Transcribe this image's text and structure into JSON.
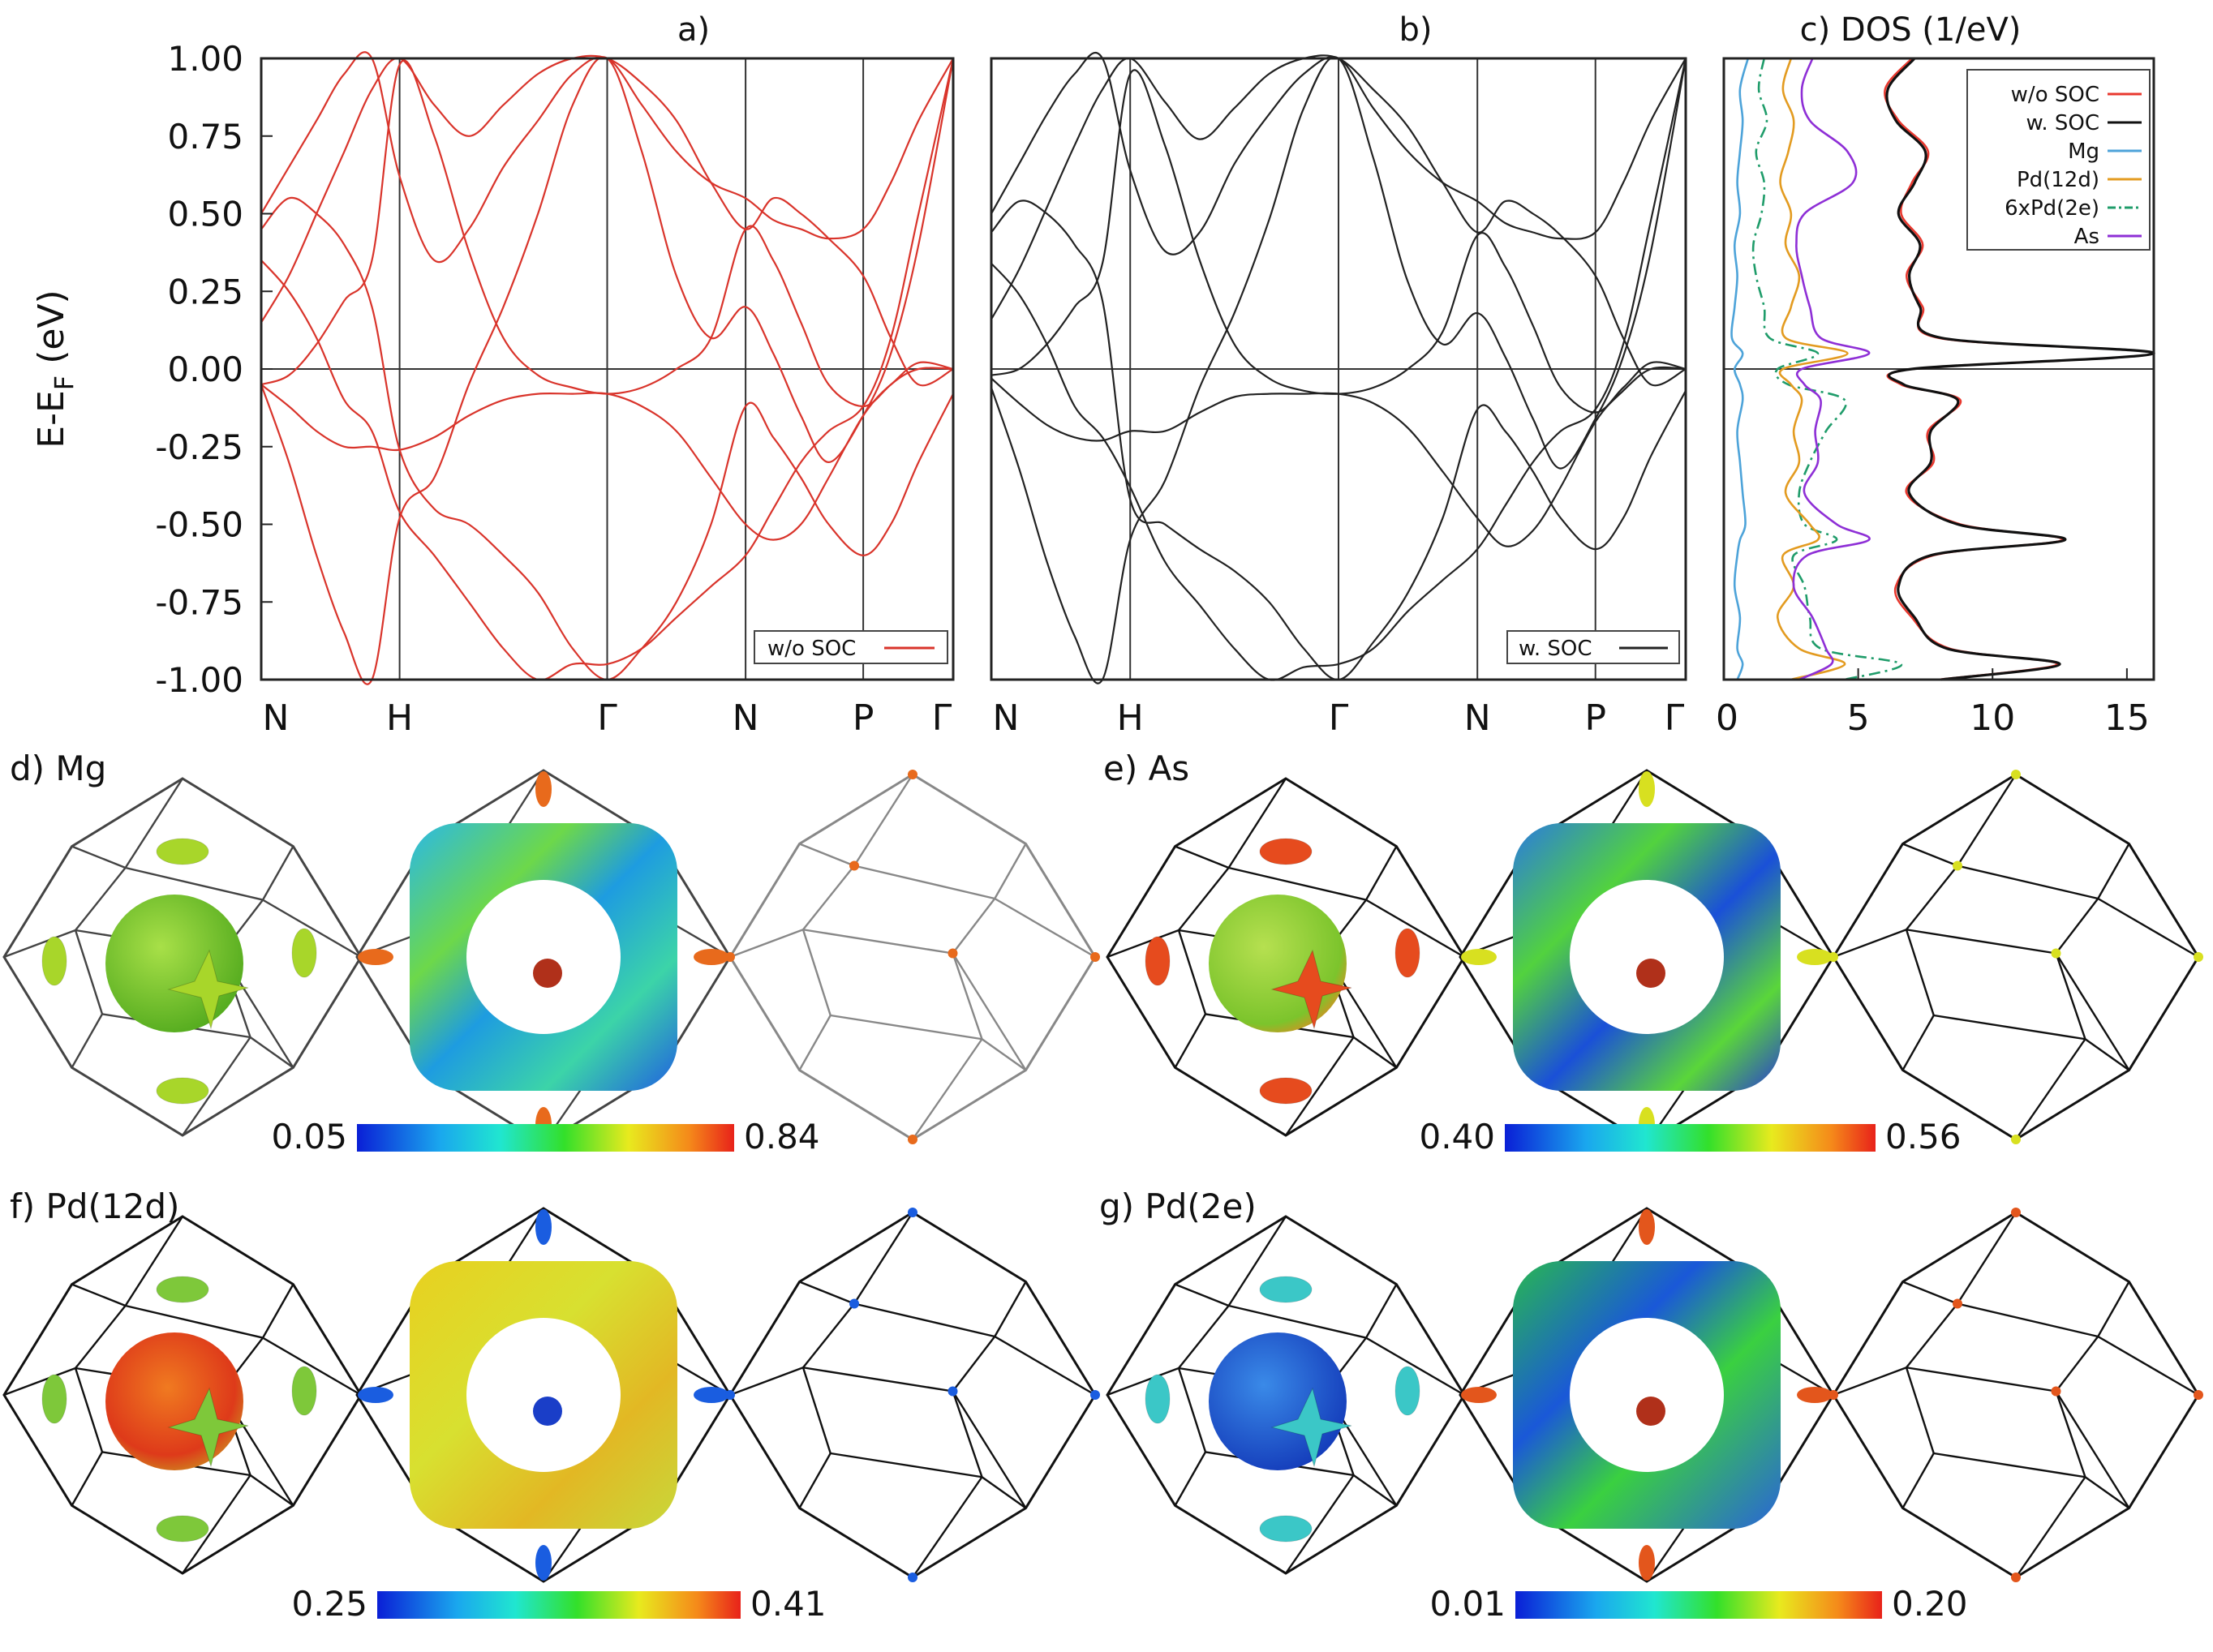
{
  "chart_data": [
    {
      "type": "line",
      "panel": "a)",
      "title": "a)",
      "ylabel": "E-E",
      "ylabel_sub": "F",
      "ylabel_unit": " (eV)",
      "ylim": [
        -1.0,
        1.0
      ],
      "yticks": [
        "1.00",
        "0.75",
        "0.50",
        "0.25",
        "0.00",
        "-0.25",
        "-0.50",
        "-0.75",
        "-1.00"
      ],
      "ytick_values": [
        1.0,
        0.75,
        0.5,
        0.25,
        0.0,
        -0.25,
        -0.5,
        -0.75,
        -1.0
      ],
      "kpoints": [
        "N",
        "H",
        "Γ",
        "N",
        "P",
        "Γ"
      ],
      "kpoint_pos": [
        0,
        0.2,
        0.5,
        0.7,
        0.87,
        1.0
      ],
      "color": "#d9342b",
      "legend": "w/o SOC",
      "legend_position": "bottom-right",
      "x": [
        0,
        0.04,
        0.08,
        0.12,
        0.16,
        0.2,
        0.25,
        0.3,
        0.35,
        0.4,
        0.45,
        0.5,
        0.55,
        0.6,
        0.65,
        0.7,
        0.74,
        0.78,
        0.82,
        0.87,
        0.91,
        0.95,
        1.0
      ],
      "series": [
        {
          "values": [
            -0.05,
            -0.02,
            0.08,
            0.22,
            0.35,
            0.98,
            0.75,
            0.38,
            0.1,
            -0.02,
            -0.06,
            -0.08,
            -0.06,
            0.0,
            0.1,
            0.45,
            0.35,
            0.15,
            -0.05,
            -0.12,
            -0.05,
            0.02,
            0.0
          ]
        },
        {
          "values": [
            -0.05,
            -0.12,
            -0.2,
            -0.25,
            -0.25,
            -0.26,
            -0.22,
            -0.15,
            -0.1,
            -0.08,
            -0.08,
            -0.08,
            -0.12,
            -0.2,
            -0.35,
            -0.5,
            -0.55,
            -0.5,
            -0.35,
            -0.15,
            -0.05,
            0.0,
            0.0
          ]
        },
        {
          "values": [
            0.45,
            0.55,
            0.5,
            0.4,
            0.2,
            -0.26,
            -0.45,
            -0.5,
            -0.6,
            -0.72,
            -0.9,
            -1.0,
            -0.9,
            -0.75,
            -0.5,
            -0.12,
            -0.22,
            -0.35,
            -0.5,
            -0.6,
            -0.5,
            -0.3,
            -0.08
          ]
        },
        {
          "values": [
            0.5,
            0.65,
            0.8,
            0.95,
            1.0,
            0.62,
            0.35,
            0.45,
            0.65,
            0.8,
            0.95,
            1.0,
            0.85,
            0.7,
            0.6,
            0.55,
            0.48,
            0.45,
            0.42,
            0.45,
            0.6,
            0.8,
            1.0
          ]
        },
        {
          "values": [
            -0.05,
            -0.3,
            -0.6,
            -0.85,
            -1.0,
            -0.48,
            -0.35,
            -0.05,
            0.2,
            0.5,
            0.85,
            1.0,
            0.7,
            0.3,
            0.1,
            0.2,
            0.05,
            -0.15,
            -0.3,
            -0.15,
            0.05,
            0.4,
            1.0
          ]
        },
        {
          "values": [
            0.35,
            0.25,
            0.1,
            -0.1,
            -0.2,
            -0.46,
            -0.6,
            -0.75,
            -0.9,
            -1.0,
            -0.95,
            -0.95,
            -0.9,
            -0.8,
            -0.7,
            -0.6,
            -0.45,
            -0.3,
            -0.2,
            -0.12,
            0.1,
            0.5,
            1.0
          ]
        },
        {
          "values": [
            0.15,
            0.3,
            0.5,
            0.7,
            0.9,
            1.0,
            0.85,
            0.75,
            0.85,
            0.95,
            1.0,
            1.0,
            0.92,
            0.8,
            0.6,
            0.45,
            0.55,
            0.5,
            0.42,
            0.3,
            0.1,
            -0.05,
            0.0
          ]
        }
      ]
    },
    {
      "type": "line",
      "panel": "b)",
      "title": "b)",
      "ylim": [
        -1.0,
        1.0
      ],
      "kpoints": [
        "N",
        "H",
        "Γ",
        "N",
        "P",
        "Γ"
      ],
      "kpoint_pos": [
        0,
        0.2,
        0.5,
        0.7,
        0.87,
        1.0
      ],
      "color": "#222222",
      "legend": "w. SOC",
      "legend_position": "bottom-right",
      "x": [
        0,
        0.04,
        0.08,
        0.12,
        0.16,
        0.2,
        0.25,
        0.3,
        0.35,
        0.4,
        0.45,
        0.5,
        0.55,
        0.6,
        0.65,
        0.7,
        0.74,
        0.78,
        0.82,
        0.87,
        0.91,
        0.95,
        1.0
      ],
      "series": [
        {
          "values": [
            -0.02,
            0.0,
            0.08,
            0.2,
            0.34,
            0.95,
            0.72,
            0.35,
            0.08,
            -0.03,
            -0.07,
            -0.08,
            -0.06,
            0.0,
            0.12,
            0.43,
            0.33,
            0.14,
            -0.06,
            -0.14,
            -0.06,
            0.02,
            0.0
          ]
        },
        {
          "values": [
            -0.03,
            -0.11,
            -0.18,
            -0.22,
            -0.23,
            -0.2,
            -0.2,
            -0.14,
            -0.09,
            -0.08,
            -0.08,
            -0.08,
            -0.11,
            -0.19,
            -0.33,
            -0.48,
            -0.57,
            -0.52,
            -0.38,
            -0.17,
            -0.07,
            0.0,
            0.0
          ]
        },
        {
          "values": [
            0.44,
            0.54,
            0.5,
            0.4,
            0.22,
            -0.42,
            -0.5,
            -0.58,
            -0.65,
            -0.75,
            -0.9,
            -1.0,
            -0.88,
            -0.72,
            -0.48,
            -0.13,
            -0.2,
            -0.33,
            -0.48,
            -0.58,
            -0.48,
            -0.28,
            -0.07
          ]
        },
        {
          "values": [
            0.5,
            0.66,
            0.82,
            0.95,
            1.0,
            0.64,
            0.38,
            0.44,
            0.66,
            0.82,
            0.95,
            1.0,
            0.84,
            0.7,
            0.6,
            0.54,
            0.47,
            0.44,
            0.42,
            0.44,
            0.6,
            0.8,
            1.0
          ]
        },
        {
          "values": [
            -0.06,
            -0.32,
            -0.62,
            -0.86,
            -1.0,
            -0.55,
            -0.36,
            -0.06,
            0.18,
            0.48,
            0.84,
            1.0,
            0.68,
            0.28,
            0.08,
            0.18,
            0.04,
            -0.16,
            -0.32,
            -0.16,
            0.04,
            0.38,
            1.0
          ]
        },
        {
          "values": [
            0.34,
            0.24,
            0.08,
            -0.12,
            -0.22,
            -0.38,
            -0.62,
            -0.76,
            -0.9,
            -1.0,
            -0.96,
            -0.95,
            -0.9,
            -0.78,
            -0.68,
            -0.58,
            -0.44,
            -0.3,
            -0.2,
            -0.13,
            0.08,
            0.48,
            1.0
          ]
        },
        {
          "values": [
            0.16,
            0.32,
            0.52,
            0.72,
            0.9,
            1.0,
            0.86,
            0.74,
            0.84,
            0.95,
            1.0,
            1.0,
            0.9,
            0.78,
            0.6,
            0.44,
            0.54,
            0.5,
            0.43,
            0.3,
            0.1,
            -0.05,
            0.0
          ]
        }
      ]
    },
    {
      "type": "line",
      "panel": "c)",
      "title": "c) DOS (1/eV)",
      "xlim": [
        0,
        16
      ],
      "xticks": [
        "0",
        "5",
        "10",
        "15"
      ],
      "xtick_values": [
        0,
        5,
        10,
        15
      ],
      "ylim": [
        -1.0,
        1.0
      ],
      "legend_position": "top-right",
      "y": [
        1.0,
        0.9,
        0.8,
        0.7,
        0.6,
        0.5,
        0.4,
        0.3,
        0.2,
        0.1,
        0.05,
        0.0,
        -0.05,
        -0.1,
        -0.2,
        -0.3,
        -0.4,
        -0.5,
        -0.55,
        -0.6,
        -0.7,
        -0.8,
        -0.9,
        -0.95,
        -1.0
      ],
      "series": [
        {
          "name": "w/o SOC",
          "color": "#e8392f",
          "dash": "solid",
          "values": [
            7.0,
            6.0,
            6.5,
            7.6,
            7.0,
            6.6,
            7.4,
            6.8,
            7.4,
            8.0,
            16.0,
            7.0,
            6.6,
            8.8,
            7.6,
            7.8,
            6.8,
            8.8,
            12.6,
            7.8,
            6.4,
            7.0,
            8.4,
            12.4,
            8.0
          ]
        },
        {
          "name": "w. SOC",
          "color": "#111111",
          "dash": "solid",
          "values": [
            7.1,
            6.1,
            6.4,
            7.5,
            7.1,
            6.5,
            7.3,
            6.9,
            7.3,
            8.1,
            16.0,
            7.0,
            6.7,
            8.7,
            7.7,
            7.7,
            6.9,
            8.7,
            12.7,
            7.7,
            6.5,
            7.1,
            8.3,
            12.5,
            8.1
          ]
        },
        {
          "name": "Mg",
          "color": "#4da3d9",
          "dash": "solid",
          "values": [
            0.9,
            0.6,
            0.7,
            0.6,
            0.5,
            0.6,
            0.4,
            0.5,
            0.4,
            0.3,
            0.7,
            0.4,
            0.6,
            0.7,
            0.5,
            0.6,
            0.7,
            0.8,
            0.6,
            0.5,
            0.4,
            0.6,
            0.5,
            0.7,
            0.5
          ]
        },
        {
          "name": "Pd(12d)",
          "color": "#e39b20",
          "dash": "solid",
          "values": [
            2.5,
            2.2,
            2.6,
            2.4,
            2.1,
            2.5,
            2.3,
            2.8,
            2.5,
            2.3,
            4.6,
            2.2,
            2.5,
            2.9,
            2.6,
            2.8,
            2.3,
            3.2,
            3.5,
            2.2,
            2.6,
            2.0,
            2.8,
            4.5,
            2.5
          ]
        },
        {
          "name": "6xPd(2e)",
          "color": "#1f9c6a",
          "dash": "dashdot",
          "values": [
            1.5,
            1.3,
            1.6,
            1.2,
            1.5,
            1.4,
            1.1,
            1.2,
            1.5,
            1.7,
            3.5,
            2.0,
            2.4,
            4.5,
            3.8,
            3.2,
            2.8,
            3.0,
            4.2,
            2.6,
            3.0,
            3.2,
            3.6,
            6.6,
            4.5
          ]
        },
        {
          "name": "As",
          "color": "#8e2fd6",
          "dash": "solid",
          "values": [
            3.3,
            2.9,
            3.2,
            4.6,
            4.8,
            3.0,
            2.7,
            2.9,
            3.2,
            3.6,
            5.4,
            2.9,
            3.0,
            3.6,
            3.4,
            3.5,
            3.0,
            4.2,
            5.4,
            3.1,
            2.6,
            3.3,
            3.8,
            4.0,
            2.8
          ]
        }
      ]
    },
    {
      "type": "colorbar",
      "label": "d) Mg",
      "min": "0.05",
      "max": "0.84"
    },
    {
      "type": "colorbar",
      "label": "e) As",
      "min": "0.40",
      "max": "0.56"
    },
    {
      "type": "colorbar",
      "label": "f) Pd(12d)",
      "min": "0.25",
      "max": "0.41"
    },
    {
      "type": "colorbar",
      "label": "g) Pd(2e)",
      "min": "0.01",
      "max": "0.20"
    }
  ],
  "fermi_surfaces": {
    "d": {
      "label": "d) Mg",
      "sphere": "#7dcc2f",
      "pockets": "#a8d62a",
      "tube": "mixed",
      "corner": "#e86a1c"
    },
    "e": {
      "label": "e) As",
      "sphere": "#9bd23a",
      "pockets": "#e64b1e",
      "tube": "mixed",
      "corner": "#d8e020"
    },
    "f": {
      "label": "f) Pd(12d)",
      "sphere": "#e2431e",
      "pockets": "#7ec83a",
      "tube": "yellow",
      "corner": "#1a5de0"
    },
    "g": {
      "label": "g) Pd(2e)",
      "sphere": "#1f62d6",
      "pockets": "#3bc7c7",
      "tube": "mixed",
      "corner": "#e3561c"
    }
  }
}
